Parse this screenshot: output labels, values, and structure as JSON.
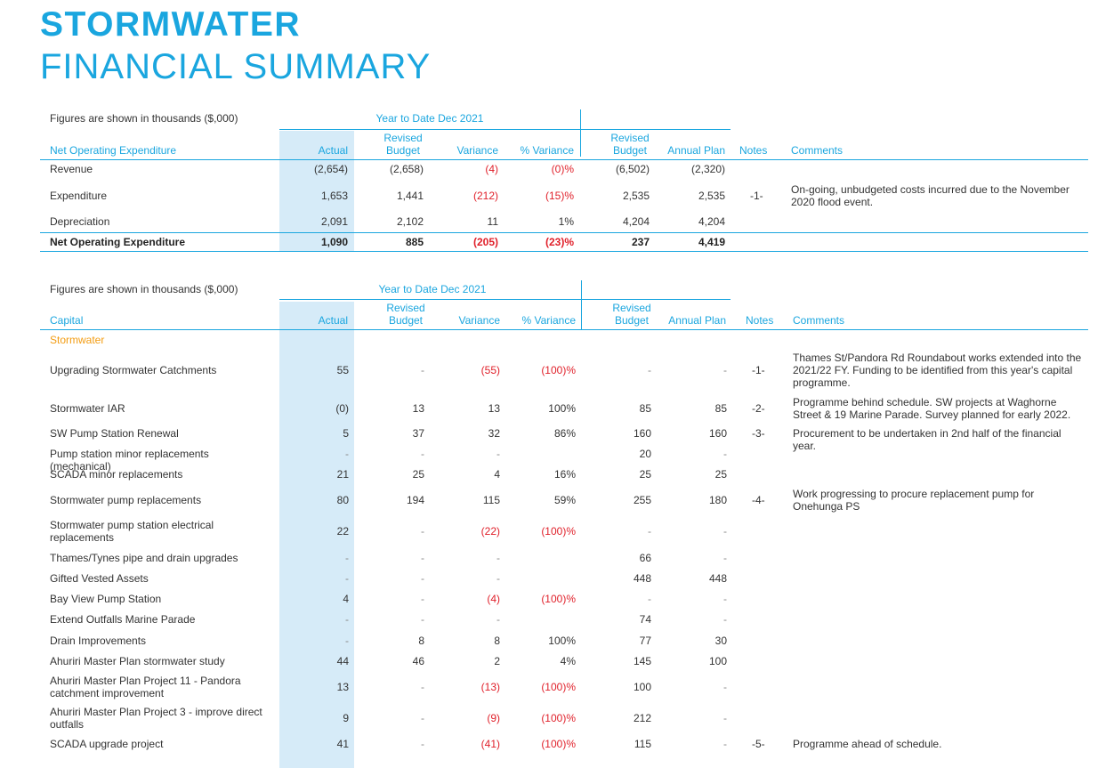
{
  "title": {
    "line1": "STORMWATER",
    "line2": "FINANCIAL SUMMARY"
  },
  "colors": {
    "accent": "#1aa6df",
    "negative": "#e0202a",
    "section": "#f39c12",
    "shade": "#d6ebf8"
  },
  "opex": {
    "figures_note": "Figures are shown in thousands ($,000)",
    "ytd_label": "Year to Date Dec 2021",
    "headers": {
      "name": "Net Operating Expenditure",
      "actual": "Actual",
      "revised_budget_l1": "Revised",
      "revised_budget_l2": "Budget",
      "variance": "Variance",
      "pct_variance": "% Variance",
      "fy_revised_l1": "Revised",
      "fy_revised_l2": "Budget",
      "annual_plan": "Annual Plan",
      "notes": "Notes",
      "comments": "Comments"
    },
    "rows": [
      {
        "name": "Revenue",
        "actual": "(2,654)",
        "rev_budget": "(2,658)",
        "variance": "(4)",
        "pct": "(0)%",
        "fy_revised": "(6,502)",
        "annual_plan": "(2,320)",
        "note": "",
        "comment": ""
      },
      {
        "name": "Expenditure",
        "actual": "1,653",
        "rev_budget": "1,441",
        "variance": "(212)",
        "pct": "(15)%",
        "fy_revised": "2,535",
        "annual_plan": "2,535",
        "note": "-1-",
        "comment": "On-going, unbudgeted costs incurred due to the November 2020 flood event."
      },
      {
        "name": "Depreciation",
        "actual": "2,091",
        "rev_budget": "2,102",
        "variance": "11",
        "pct": "1%",
        "fy_revised": "4,204",
        "annual_plan": "4,204",
        "note": "",
        "comment": ""
      }
    ],
    "total": {
      "name": "Net Operating Expenditure",
      "actual": "1,090",
      "rev_budget": "885",
      "variance": "(205)",
      "pct": "(23)%",
      "fy_revised": "237",
      "annual_plan": "4,419"
    }
  },
  "capital": {
    "figures_note": "Figures are shown in thousands ($,000)",
    "ytd_label": "Year to Date Dec 2021",
    "headers": {
      "name": "Capital",
      "actual": "Actual",
      "revised_budget_l1": "Revised",
      "revised_budget_l2": "Budget",
      "variance": "Variance",
      "pct_variance": "% Variance",
      "fy_revised_l1": "Revised",
      "fy_revised_l2": "Budget",
      "annual_plan": "Annual Plan",
      "notes": "Notes",
      "comments": "Comments"
    },
    "section_label": "Stormwater",
    "rows": [
      {
        "name": "Upgrading Stormwater Catchments",
        "actual": "55",
        "rev_budget": "-",
        "variance": "(55)",
        "pct": "(100)%",
        "fy_revised": "-",
        "annual_plan": "-",
        "note": "-1-",
        "comment": "Thames St/Pandora Rd Roundabout works extended into the 2021/22 FY. Funding to be identified from this year's capital programme."
      },
      {
        "name": "Stormwater IAR",
        "actual": "(0)",
        "rev_budget": "13",
        "variance": "13",
        "pct": "100%",
        "fy_revised": "85",
        "annual_plan": "85",
        "note": "-2-",
        "comment": "Programme behind schedule. SW projects at Waghorne Street & 19 Marine Parade. Survey planned for early 2022."
      },
      {
        "name": "SW Pump Station Renewal",
        "actual": "5",
        "rev_budget": "37",
        "variance": "32",
        "pct": "86%",
        "fy_revised": "160",
        "annual_plan": "160",
        "note": "-3-",
        "comment": "Procurement to be undertaken in 2nd half of the financial year."
      },
      {
        "name": "Pump station minor replacements (mechanical)",
        "actual": "-",
        "rev_budget": "-",
        "variance": "-",
        "pct": "",
        "fy_revised": "20",
        "annual_plan": "-",
        "note": "",
        "comment": ""
      },
      {
        "name": "SCADA minor replacements",
        "actual": "21",
        "rev_budget": "25",
        "variance": "4",
        "pct": "16%",
        "fy_revised": "25",
        "annual_plan": "25",
        "note": "",
        "comment": ""
      },
      {
        "name": "Stormwater pump replacements",
        "actual": "80",
        "rev_budget": "194",
        "variance": "115",
        "pct": "59%",
        "fy_revised": "255",
        "annual_plan": "180",
        "note": "-4-",
        "comment": "Work progressing to procure replacement pump for Onehunga PS"
      },
      {
        "name": "Stormwater pump station electrical replacements",
        "actual": "22",
        "rev_budget": "-",
        "variance": "(22)",
        "pct": "(100)%",
        "fy_revised": "-",
        "annual_plan": "-",
        "note": "",
        "comment": ""
      },
      {
        "name": "Thames/Tynes pipe and drain upgrades",
        "actual": "-",
        "rev_budget": "-",
        "variance": "-",
        "pct": "",
        "fy_revised": "66",
        "annual_plan": "-",
        "note": "",
        "comment": ""
      },
      {
        "name": "Gifted Vested Assets",
        "actual": "-",
        "rev_budget": "-",
        "variance": "-",
        "pct": "",
        "fy_revised": "448",
        "annual_plan": "448",
        "note": "",
        "comment": ""
      },
      {
        "name": "Bay View Pump Station",
        "actual": "4",
        "rev_budget": "-",
        "variance": "(4)",
        "pct": "(100)%",
        "fy_revised": "-",
        "annual_plan": "-",
        "note": "",
        "comment": ""
      },
      {
        "name": "Extend Outfalls Marine Parade",
        "actual": "-",
        "rev_budget": "-",
        "variance": "-",
        "pct": "",
        "fy_revised": "74",
        "annual_plan": "-",
        "note": "",
        "comment": ""
      },
      {
        "name": "Drain Improvements",
        "actual": "-",
        "rev_budget": "8",
        "variance": "8",
        "pct": "100%",
        "fy_revised": "77",
        "annual_plan": "30",
        "note": "",
        "comment": ""
      },
      {
        "name": "Ahuriri Master Plan stormwater study",
        "actual": "44",
        "rev_budget": "46",
        "variance": "2",
        "pct": "4%",
        "fy_revised": "145",
        "annual_plan": "100",
        "note": "",
        "comment": ""
      },
      {
        "name": "Ahuriri Master Plan Project 11 - Pandora catchment improvement",
        "actual": "13",
        "rev_budget": "-",
        "variance": "(13)",
        "pct": "(100)%",
        "fy_revised": "100",
        "annual_plan": "-",
        "note": "",
        "comment": ""
      },
      {
        "name": "Ahuriri Master Plan Project 3 - improve direct outfalls",
        "actual": "9",
        "rev_budget": "-",
        "variance": "(9)",
        "pct": "(100)%",
        "fy_revised": "212",
        "annual_plan": "-",
        "note": "",
        "comment": ""
      },
      {
        "name": "SCADA upgrade project",
        "actual": "41",
        "rev_budget": "-",
        "variance": "(41)",
        "pct": "(100)%",
        "fy_revised": "115",
        "annual_plan": "-",
        "note": "-5-",
        "comment": "Programme ahead of schedule."
      }
    ]
  }
}
